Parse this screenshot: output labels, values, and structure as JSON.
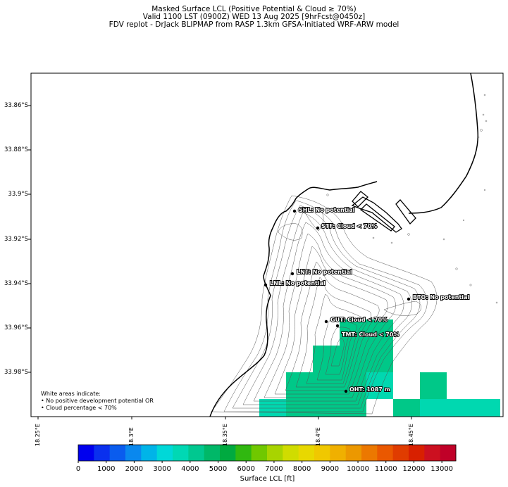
{
  "header": {
    "line1": "Masked Surface LCL (Positive Potential & Cloud ≥ 70%)",
    "line2": "Valid 1100 LST (0900Z) WED 13 Aug 2025 [9hrFcst@0450z]",
    "line3": "FDV replot - DrJack BLIPMAP from RASP 1.3km GFSA-Initiated WRF-ARW model"
  },
  "axes": {
    "y_ticks": [
      "33.86°S",
      "33.88°S",
      "33.9°S",
      "33.92°S",
      "33.94°S",
      "33.96°S",
      "33.98°S"
    ],
    "x_ticks": [
      "18.25°E",
      "18.3°E",
      "18.35°E",
      "18.4°E",
      "18.45°E"
    ]
  },
  "stations": [
    {
      "code": "SHL",
      "label": "SHL: No potential"
    },
    {
      "code": "STF",
      "label": "STF: Cloud < 70%"
    },
    {
      "code": "LNT",
      "label": "LNT: No potential"
    },
    {
      "code": "LNL",
      "label": "LNL: No potential"
    },
    {
      "code": "BTO",
      "label": "BTO: No potential"
    },
    {
      "code": "GUT",
      "label": "GUT: Cloud < 70%"
    },
    {
      "code": "TMT",
      "label": "TMT: Cloud < 70%"
    },
    {
      "code": "OHT",
      "label": "OHT: 1087 m"
    }
  ],
  "note": {
    "line1": "White areas indicate:",
    "line2": "• No positive development potential OR",
    "line3": "• Cloud percentage < 70%"
  },
  "colorbar": {
    "label": "Surface LCL [ft]",
    "ticks": [
      "0",
      "1000",
      "2000",
      "3000",
      "4000",
      "5000",
      "6000",
      "7000",
      "8000",
      "9000",
      "10000",
      "11000",
      "12000",
      "13000"
    ],
    "colors": [
      "#0000ee",
      "#0a30ee",
      "#0a5cee",
      "#0a88ee",
      "#00b4e8",
      "#00d8d8",
      "#00d8b4",
      "#00c890",
      "#00b868",
      "#00aa40",
      "#30b810",
      "#70c800",
      "#a8d400",
      "#d0dc00",
      "#e8d800",
      "#f0c800",
      "#f0b000",
      "#ec9800",
      "#ec7800",
      "#ea5800",
      "#e03c00",
      "#d82000",
      "#cc1020",
      "#c00028"
    ]
  }
}
